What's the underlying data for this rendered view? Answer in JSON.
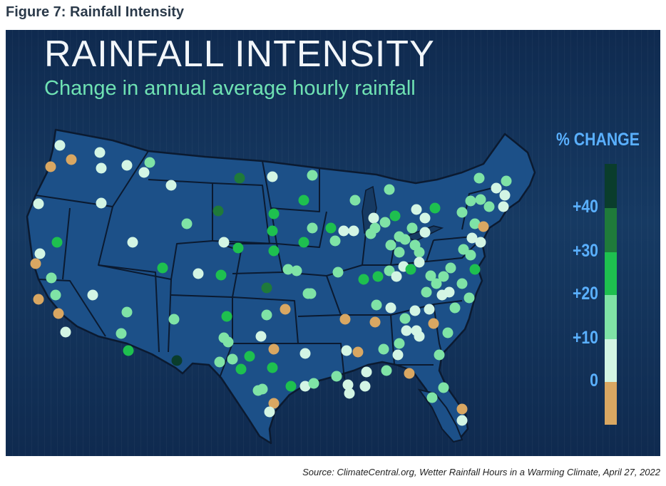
{
  "figure_caption": "Figure 7: Rainfall Intensity",
  "map_title": "RAINFALL INTENSITY",
  "map_subtitle": "Change in annual average hourly rainfall",
  "legend": {
    "title": "% CHANGE",
    "labels": [
      "+40",
      "+30",
      "+20",
      "+10",
      "0"
    ],
    "bins": [
      {
        "color": "#0a3d2c",
        "range": "40+"
      },
      {
        "color": "#1f7a3a",
        "range": "30-40"
      },
      {
        "color": "#1ec04f",
        "range": "20-30"
      },
      {
        "color": "#7fe3a6",
        "range": "10-20"
      },
      {
        "color": "#d3f5e4",
        "range": "0-10"
      },
      {
        "color": "#d9a762",
        "range": "<0"
      }
    ]
  },
  "colors": {
    "background": "#163a63",
    "state_fill": "#1c5088",
    "state_border": "#0b1a30",
    "title": "#f2f6fa",
    "subtitle": "#6fe2b3",
    "legend_text": "#5ab0ff"
  },
  "source": "Source: ClimateCentral.org, Wetter Rainfall Hours in a Warming Climate, April 27, 2022"
}
